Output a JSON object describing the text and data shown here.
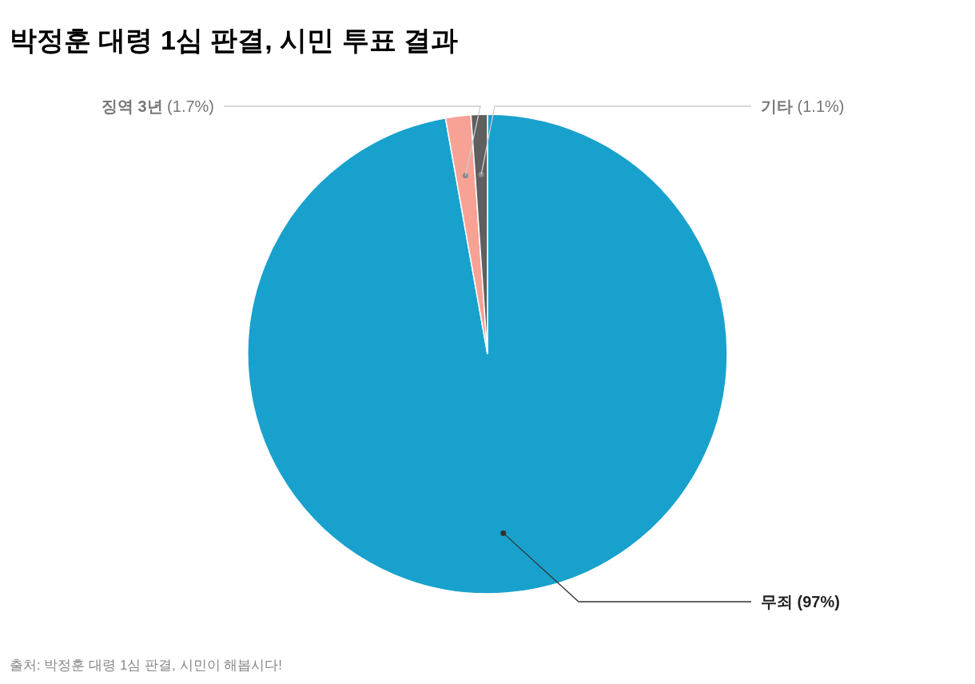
{
  "chart_data": {
    "type": "pie",
    "title": "박정훈 대령 1심 판결, 시민 투표 결과",
    "categories": [
      "무죄",
      "징역 3년",
      "기타"
    ],
    "values": [
      97,
      1.7,
      1.1
    ],
    "colors": [
      "#18a1cd",
      "#f8a195",
      "#5f5f5f"
    ],
    "value_labels": [
      "(97%)",
      "(1.7%)",
      "(1.1%)"
    ],
    "annotations": [
      "출처: 박정훈 대령 1심 판결, 시민이 해봅시다!"
    ]
  }
}
